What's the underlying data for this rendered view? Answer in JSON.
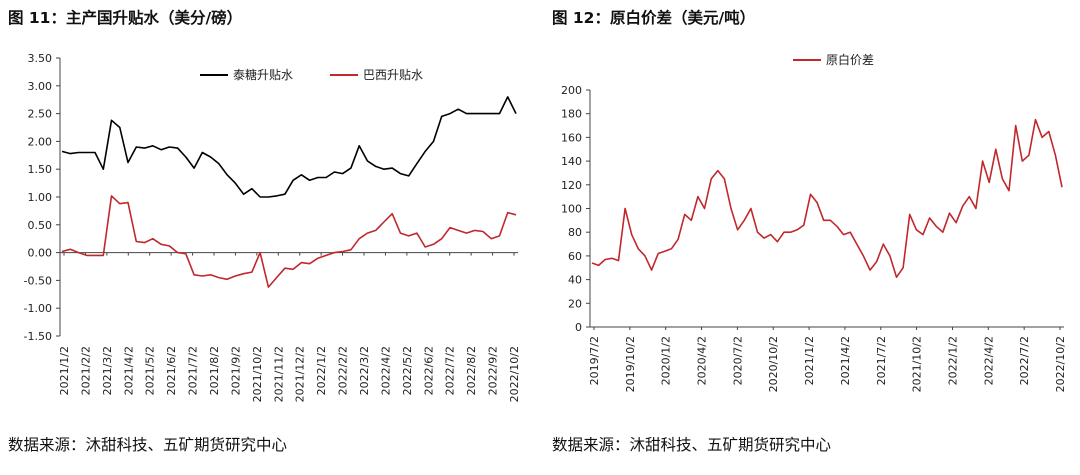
{
  "left": {
    "title": "图 11：主产国升贴水（美分/磅）",
    "source": "数据来源：沐甜科技、五矿期货研究中心"
  },
  "right": {
    "title": "图 12：原白价差（美元/吨）",
    "source": "数据来源：沐甜科技、五矿期货研究中心"
  },
  "chart_data": [
    {
      "type": "line",
      "title": "图 11：主产国升贴水（美分/磅）",
      "x_labels": [
        "2021/1/2",
        "2021/2/2",
        "2021/3/2",
        "2021/4/2",
        "2021/5/2",
        "2021/6/2",
        "2021/7/2",
        "2021/8/2",
        "2021/9/2",
        "2021/10/2",
        "2021/11/2",
        "2021/12/2",
        "2022/1/2",
        "2022/2/2",
        "2022/3/2",
        "2022/4/2",
        "2022/5/2",
        "2022/6/2",
        "2022/7/2",
        "2022/8/2",
        "2022/9/2",
        "2022/10/2"
      ],
      "y_ticks": [
        "3.50",
        "3.00",
        "2.50",
        "2.00",
        "1.50",
        "1.00",
        "0.50",
        "0.00",
        "-0.50",
        "-1.00",
        "-1.50"
      ],
      "ylim": [
        -1.5,
        3.5
      ],
      "legend_position": "top",
      "series": [
        {
          "name": "泰糖升贴水",
          "color": "#000000",
          "values": [
            1.82,
            1.78,
            1.8,
            1.8,
            1.8,
            1.5,
            2.38,
            2.25,
            1.62,
            1.9,
            1.88,
            1.92,
            1.85,
            1.9,
            1.88,
            1.72,
            1.52,
            1.8,
            1.72,
            1.6,
            1.4,
            1.25,
            1.05,
            1.15,
            1.0,
            1.0,
            1.02,
            1.05,
            1.3,
            1.4,
            1.3,
            1.35,
            1.35,
            1.45,
            1.42,
            1.52,
            1.92,
            1.65,
            1.55,
            1.5,
            1.52,
            1.42,
            1.38,
            1.6,
            1.82,
            2.0,
            2.45,
            2.5,
            2.58,
            2.5,
            2.5,
            2.5,
            2.5,
            2.5,
            2.8,
            2.5
          ]
        },
        {
          "name": "巴西升贴水",
          "color": "#c0282d",
          "values": [
            0.02,
            0.06,
            0.0,
            -0.05,
            -0.05,
            -0.05,
            1.02,
            0.88,
            0.9,
            0.2,
            0.18,
            0.25,
            0.15,
            0.12,
            0.0,
            -0.02,
            -0.4,
            -0.42,
            -0.4,
            -0.45,
            -0.48,
            -0.42,
            -0.38,
            -0.35,
            0.0,
            -0.62,
            -0.45,
            -0.28,
            -0.3,
            -0.18,
            -0.2,
            -0.1,
            -0.05,
            0.0,
            0.02,
            0.05,
            0.25,
            0.35,
            0.4,
            0.55,
            0.7,
            0.35,
            0.3,
            0.35,
            0.1,
            0.15,
            0.25,
            0.45,
            0.4,
            0.35,
            0.4,
            0.38,
            0.25,
            0.3,
            0.72,
            0.68
          ]
        }
      ]
    },
    {
      "type": "line",
      "title": "图 12：原白价差（美元/吨）",
      "x_labels": [
        "2019/7/2",
        "2019/10/2",
        "2020/1/2",
        "2020/4/2",
        "2020/7/2",
        "2020/10/2",
        "2021/1/2",
        "2021/4/2",
        "2021/7/2",
        "2021/10/2",
        "2022/1/2",
        "2022/4/2",
        "2022/7/2",
        "2022/10/2"
      ],
      "y_ticks": [
        "200",
        "180",
        "160",
        "140",
        "120",
        "100",
        "80",
        "60",
        "40",
        "20",
        "0"
      ],
      "ylim": [
        0,
        200
      ],
      "legend_position": "top",
      "series": [
        {
          "name": "原白价差",
          "color": "#c0282d",
          "values": [
            54,
            52,
            57,
            58,
            56,
            100,
            78,
            66,
            60,
            48,
            62,
            64,
            66,
            74,
            95,
            90,
            110,
            100,
            125,
            132,
            125,
            100,
            82,
            90,
            100,
            80,
            75,
            78,
            72,
            80,
            80,
            82,
            86,
            112,
            105,
            90,
            90,
            85,
            78,
            80,
            70,
            60,
            48,
            55,
            70,
            60,
            42,
            50,
            95,
            82,
            78,
            92,
            85,
            80,
            96,
            88,
            102,
            110,
            100,
            140,
            122,
            150,
            125,
            115,
            170,
            140,
            145,
            175,
            160,
            165,
            145,
            118
          ]
        }
      ]
    }
  ]
}
